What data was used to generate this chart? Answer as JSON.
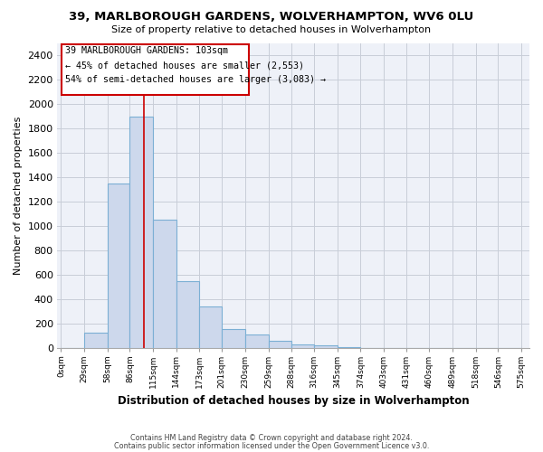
{
  "title": "39, MARLBOROUGH GARDENS, WOLVERHAMPTON, WV6 0LU",
  "subtitle": "Size of property relative to detached houses in Wolverhampton",
  "xlabel": "Distribution of detached houses by size in Wolverhampton",
  "ylabel": "Number of detached properties",
  "bar_color": "#cdd8ec",
  "bar_edge_color": "#7bafd4",
  "plot_bg_color": "#eef1f8",
  "grid_color": "#c8cdd8",
  "bin_labels": [
    "0sqm",
    "29sqm",
    "58sqm",
    "86sqm",
    "115sqm",
    "144sqm",
    "173sqm",
    "201sqm",
    "230sqm",
    "259sqm",
    "288sqm",
    "316sqm",
    "345sqm",
    "374sqm",
    "403sqm",
    "431sqm",
    "460sqm",
    "489sqm",
    "518sqm",
    "546sqm",
    "575sqm"
  ],
  "bin_edges": [
    0,
    29,
    58,
    86,
    115,
    144,
    173,
    201,
    230,
    259,
    288,
    316,
    345,
    374,
    403,
    431,
    460,
    489,
    518,
    546,
    575
  ],
  "bar_heights": [
    0,
    125,
    1350,
    1900,
    1050,
    550,
    340,
    155,
    110,
    60,
    30,
    25,
    10,
    5,
    2,
    1,
    1,
    0,
    1,
    0,
    0
  ],
  "ylim": [
    0,
    2500
  ],
  "yticks": [
    0,
    200,
    400,
    600,
    800,
    1000,
    1200,
    1400,
    1600,
    1800,
    2000,
    2200,
    2400
  ],
  "annotation_title": "39 MARLBOROUGH GARDENS: 103sqm",
  "annotation_line1": "← 45% of detached houses are smaller (2,553)",
  "annotation_line2": "54% of semi-detached houses are larger (3,083) →",
  "annotation_box_edge_color": "#cc0000",
  "property_line_color": "#cc0000",
  "property_line_x": 103,
  "footnote1": "Contains HM Land Registry data © Crown copyright and database right 2024.",
  "footnote2": "Contains public sector information licensed under the Open Government Licence v3.0.",
  "background_color": "#ffffff"
}
